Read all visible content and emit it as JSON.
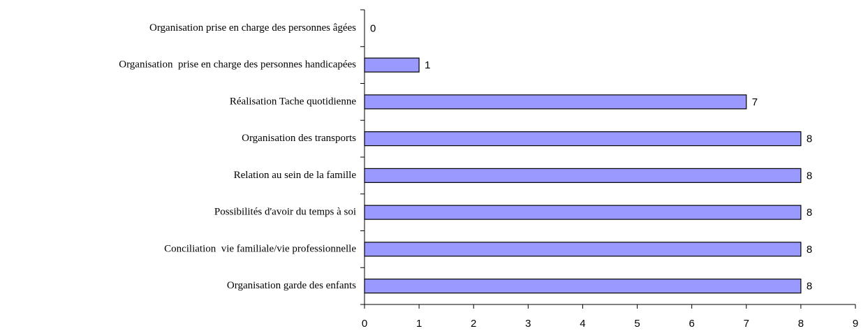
{
  "chart_data": {
    "type": "bar",
    "orientation": "horizontal",
    "categories": [
      "Organisation prise en charge des personnes âgées",
      "Organisation  prise en charge des personnes handicapées",
      "Réalisation Tache quotidienne",
      "Organisation des transports",
      "Relation au sein de la famille",
      "Possibilités d'avoir du temps à soi",
      "Conciliation  vie familiale/vie professionnelle",
      "Organisation garde des enfants"
    ],
    "values": [
      0,
      1,
      7,
      8,
      8,
      8,
      8,
      8
    ],
    "color": "#9999ff",
    "xlim": [
      0,
      9
    ],
    "xticks": [
      0,
      1,
      2,
      3,
      4,
      5,
      6,
      7,
      8,
      9
    ],
    "grid": false
  }
}
